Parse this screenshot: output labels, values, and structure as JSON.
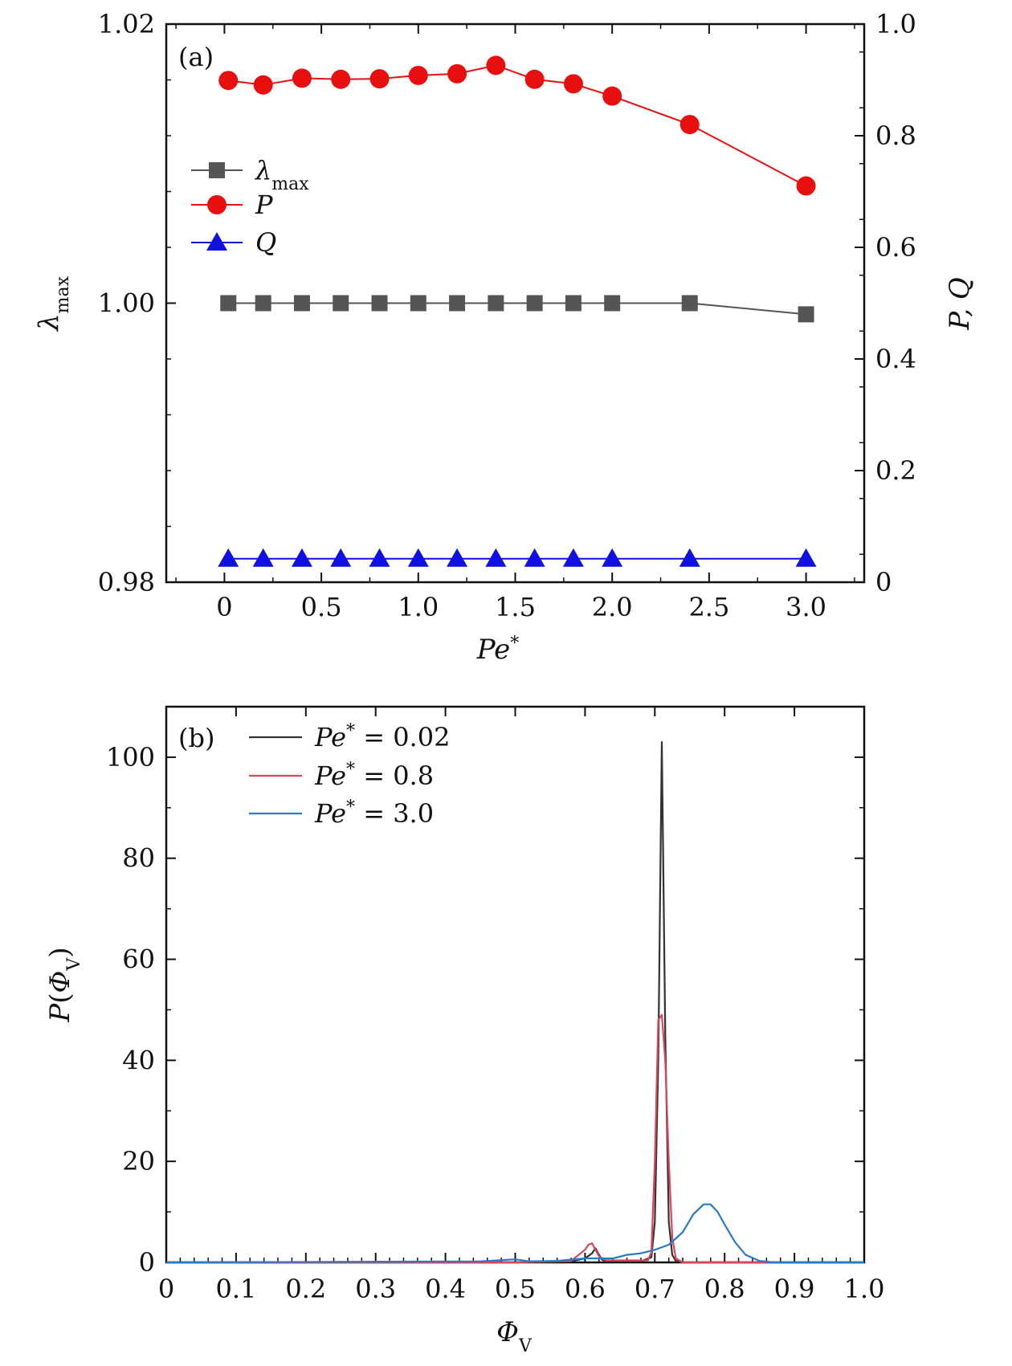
{
  "chart_data": [
    {
      "type": "line",
      "panel_label": "(a)",
      "xlabel": "Pe*",
      "ylabel_left": "λmax",
      "ylabel_right": "P, Q",
      "xlim": [
        -0.3,
        3.3
      ],
      "ylim_left": [
        0.98,
        1.02
      ],
      "ylim_right": [
        0,
        1.0
      ],
      "x_ticks": [
        0,
        0.5,
        1.0,
        1.5,
        2.0,
        2.5,
        3.0
      ],
      "x_tick_labels": [
        "0",
        "0.5",
        "1.0",
        "1.5",
        "2.0",
        "2.5",
        "3.0"
      ],
      "y_left_ticks": [
        0.98,
        1.0,
        1.02
      ],
      "y_left_tick_labels": [
        "0.98",
        "1.00",
        "1.02"
      ],
      "y_right_ticks": [
        0,
        0.2,
        0.4,
        0.6,
        0.8,
        1.0
      ],
      "y_right_tick_labels": [
        "0",
        "0.2",
        "0.4",
        "0.6",
        "0.8",
        "1.0"
      ],
      "legend_position": "upper-left",
      "x": [
        0.02,
        0.2,
        0.4,
        0.6,
        0.8,
        1.0,
        1.2,
        1.4,
        1.6,
        1.8,
        2.0,
        2.4,
        3.0
      ],
      "series": [
        {
          "name": "λmax",
          "axis": "left",
          "marker": "square",
          "color": "#555555",
          "values": [
            1.0,
            1.0,
            1.0,
            1.0,
            1.0,
            1.0,
            1.0,
            1.0,
            1.0,
            1.0,
            1.0,
            1.0,
            0.9992
          ]
        },
        {
          "name": "P",
          "axis": "right",
          "marker": "circle",
          "color": "#e8100f",
          "values": [
            0.899,
            0.891,
            0.903,
            0.901,
            0.902,
            0.908,
            0.911,
            0.926,
            0.901,
            0.893,
            0.871,
            0.82,
            0.71
          ]
        },
        {
          "name": "Q",
          "axis": "right",
          "marker": "triangle",
          "color": "#1010e0",
          "values": [
            0.042,
            0.042,
            0.042,
            0.042,
            0.042,
            0.042,
            0.042,
            0.042,
            0.042,
            0.042,
            0.042,
            0.042,
            0.042
          ]
        }
      ]
    },
    {
      "type": "line",
      "panel_label": "(b)",
      "xlabel": "ΦV",
      "ylabel": "P(ΦV)",
      "xlim": [
        0,
        1.0
      ],
      "ylim": [
        0,
        110
      ],
      "x_ticks": [
        0,
        0.1,
        0.2,
        0.3,
        0.4,
        0.5,
        0.6,
        0.7,
        0.8,
        0.9,
        1.0
      ],
      "x_tick_labels": [
        "0",
        "0.1",
        "0.2",
        "0.3",
        "0.4",
        "0.5",
        "0.6",
        "0.7",
        "0.8",
        "0.9",
        "1.0"
      ],
      "y_ticks": [
        0,
        20,
        40,
        60,
        80,
        100
      ],
      "y_tick_labels": [
        "0",
        "20",
        "40",
        "60",
        "80",
        "100"
      ],
      "legend_position": "upper-left",
      "series": [
        {
          "name": "Pe* = 0.02",
          "color": "#333333",
          "x": [
            0,
            0.5,
            0.58,
            0.6,
            0.61,
            0.615,
            0.62,
            0.625,
            0.63,
            0.68,
            0.695,
            0.7,
            0.705,
            0.71,
            0.715,
            0.72,
            0.725,
            0.73,
            0.74,
            1.0
          ],
          "y": [
            0,
            0,
            0.2,
            0.8,
            1.8,
            2.8,
            1.5,
            0.5,
            0.2,
            0.2,
            1,
            8,
            40,
            103,
            45,
            8,
            1.5,
            0.3,
            0,
            0
          ]
        },
        {
          "name": "Pe* = 0.8",
          "color": "#d9485a",
          "x": [
            0,
            0.5,
            0.58,
            0.6,
            0.605,
            0.61,
            0.615,
            0.62,
            0.63,
            0.69,
            0.695,
            0.7,
            0.705,
            0.71,
            0.715,
            0.72,
            0.725,
            0.73,
            0.74,
            1.0
          ],
          "y": [
            0,
            0,
            0.3,
            2.5,
            3.5,
            3.8,
            2.5,
            1.2,
            0.4,
            0.4,
            2,
            20,
            48,
            49,
            40,
            20,
            5,
            0.8,
            0,
            0
          ]
        },
        {
          "name": "Pe* = 3.0",
          "color": "#2a79c8",
          "x": [
            0,
            0.45,
            0.5,
            0.52,
            0.56,
            0.6,
            0.64,
            0.66,
            0.68,
            0.7,
            0.72,
            0.74,
            0.755,
            0.77,
            0.78,
            0.79,
            0.8,
            0.815,
            0.83,
            0.85,
            0.87,
            1.0
          ],
          "y": [
            0,
            0.2,
            0.6,
            0.2,
            0.3,
            0.8,
            0.8,
            1.5,
            1.8,
            2.5,
            3.5,
            6,
            9.5,
            11.5,
            11.5,
            10,
            7.5,
            4,
            1.5,
            0.3,
            0,
            0
          ]
        }
      ]
    }
  ]
}
